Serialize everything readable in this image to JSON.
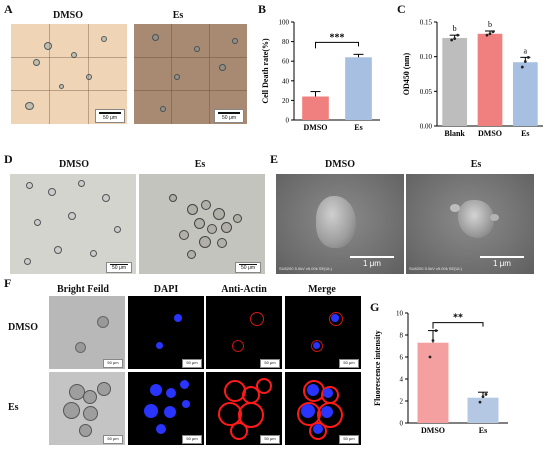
{
  "panels": {
    "A": {
      "letter": "A",
      "left": "DMSO",
      "right": "Es",
      "scale_left": "50 μm",
      "scale_right": "50 μm"
    },
    "B": {
      "letter": "B"
    },
    "C": {
      "letter": "C"
    },
    "D": {
      "letter": "D",
      "left": "DMSO",
      "right": "Es",
      "scale_left": "50 μm",
      "scale_right": "50 μm"
    },
    "E": {
      "letter": "E",
      "left": "DMSO",
      "right": "Es",
      "scale_left": "1 μm",
      "scale_right": "1 μm",
      "sem_footer": "SU8200 5.0kV x5.00k SE(UL)"
    },
    "F": {
      "letter": "F",
      "columns": [
        "Bright Feild",
        "DAPI",
        "Anti-Actin",
        "Merge"
      ],
      "rows": [
        "DMSO",
        "Es"
      ],
      "scale": "50 μm"
    },
    "G": {
      "letter": "G"
    }
  },
  "chart_data": [
    {
      "panel": "B",
      "type": "bar",
      "categories": [
        "DMSO",
        "Es"
      ],
      "values": [
        24,
        64
      ],
      "errors": [
        5,
        3
      ],
      "colors": [
        "#f08080",
        "#a7bfe0"
      ],
      "ylabel": "Cell Death rate(%)",
      "ylim": [
        0,
        100
      ],
      "yticks": [
        0,
        20,
        40,
        60,
        80,
        100
      ],
      "significance": "***"
    },
    {
      "panel": "C",
      "type": "bar",
      "categories": [
        "Blank",
        "DMSO",
        "Es"
      ],
      "values": [
        0.127,
        0.133,
        0.092
      ],
      "errors": [
        0.004,
        0.004,
        0.007
      ],
      "points": [
        [
          0.124,
          0.126,
          0.131
        ],
        [
          0.131,
          0.133,
          0.136
        ],
        [
          0.085,
          0.093,
          0.099
        ]
      ],
      "colors": [
        "#bdbdbd",
        "#f08080",
        "#a7bfe0"
      ],
      "ylabel": "OD450 (nm)",
      "ylim": [
        0,
        0.15
      ],
      "yticks": [
        "0.00",
        "0.05",
        "0.10",
        "0.15"
      ],
      "letters": [
        "b",
        "b",
        "a"
      ]
    },
    {
      "panel": "G",
      "type": "bar",
      "categories": [
        "DMSO",
        "Es"
      ],
      "values": [
        7.3,
        2.3
      ],
      "errors": [
        1.1,
        0.5
      ],
      "points": [
        [
          6.0,
          7.5,
          8.4
        ],
        [
          1.9,
          2.4,
          2.6
        ]
      ],
      "colors": [
        "#f4a0a0",
        "#b4c8e4"
      ],
      "ylabel": "Fluorescence intensity",
      "ylim": [
        0,
        10
      ],
      "yticks": [
        0,
        2,
        4,
        6,
        8,
        10
      ],
      "significance": "**"
    }
  ]
}
